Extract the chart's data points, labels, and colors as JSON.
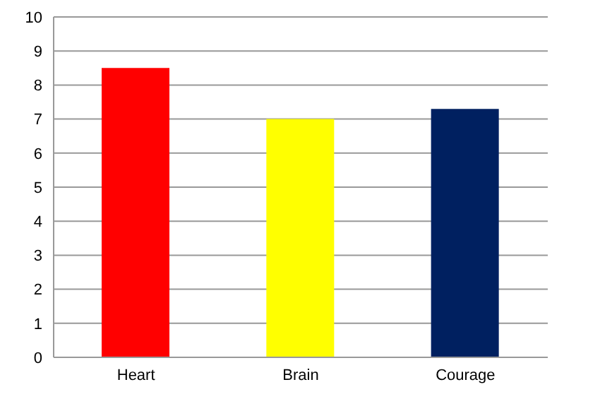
{
  "chart_data": {
    "type": "bar",
    "categories": [
      "Heart",
      "Brain",
      "Courage"
    ],
    "values": [
      8.5,
      7.0,
      7.3
    ],
    "colors": [
      "#ff0000",
      "#ffff00",
      "#002060"
    ],
    "ylim": [
      0,
      10
    ],
    "yticks": [
      0,
      1,
      2,
      3,
      4,
      5,
      6,
      7,
      8,
      9,
      10
    ],
    "grid": "y",
    "legend": false
  }
}
